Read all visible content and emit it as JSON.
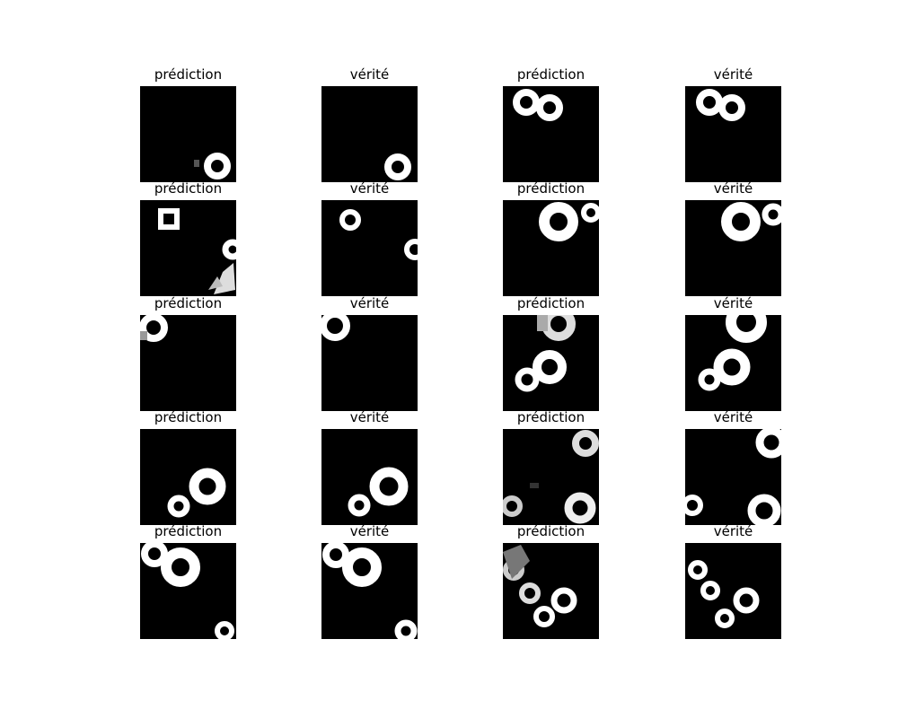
{
  "figure": {
    "label_prediction": "prédiction",
    "label_truth": "vérité",
    "panels": [
      {
        "title": "prédiction",
        "image": "binary-mask-prediction"
      },
      {
        "title": "vérité",
        "image": "binary-mask-ground-truth"
      },
      {
        "title": "prédiction",
        "image": "binary-mask-prediction"
      },
      {
        "title": "vérité",
        "image": "binary-mask-ground-truth"
      },
      {
        "title": "prédiction",
        "image": "binary-mask-prediction"
      },
      {
        "title": "vérité",
        "image": "binary-mask-ground-truth"
      },
      {
        "title": "prédiction",
        "image": "binary-mask-prediction"
      },
      {
        "title": "vérité",
        "image": "binary-mask-ground-truth"
      },
      {
        "title": "prédiction",
        "image": "binary-mask-prediction"
      },
      {
        "title": "vérité",
        "image": "binary-mask-ground-truth"
      },
      {
        "title": "prédiction",
        "image": "binary-mask-prediction"
      },
      {
        "title": "vérité",
        "image": "binary-mask-ground-truth"
      },
      {
        "title": "prédiction",
        "image": "binary-mask-prediction"
      },
      {
        "title": "vérité",
        "image": "binary-mask-ground-truth"
      },
      {
        "title": "prédiction",
        "image": "binary-mask-prediction"
      },
      {
        "title": "vérité",
        "image": "binary-mask-ground-truth"
      },
      {
        "title": "prédiction",
        "image": "binary-mask-prediction"
      },
      {
        "title": "vérité",
        "image": "binary-mask-ground-truth"
      },
      {
        "title": "prédiction",
        "image": "binary-mask-prediction"
      },
      {
        "title": "vérité",
        "image": "binary-mask-ground-truth"
      }
    ]
  },
  "colors": {
    "background": "#ffffff",
    "mask_background": "#000000",
    "ring": "#ffffff",
    "text": "#000000"
  }
}
